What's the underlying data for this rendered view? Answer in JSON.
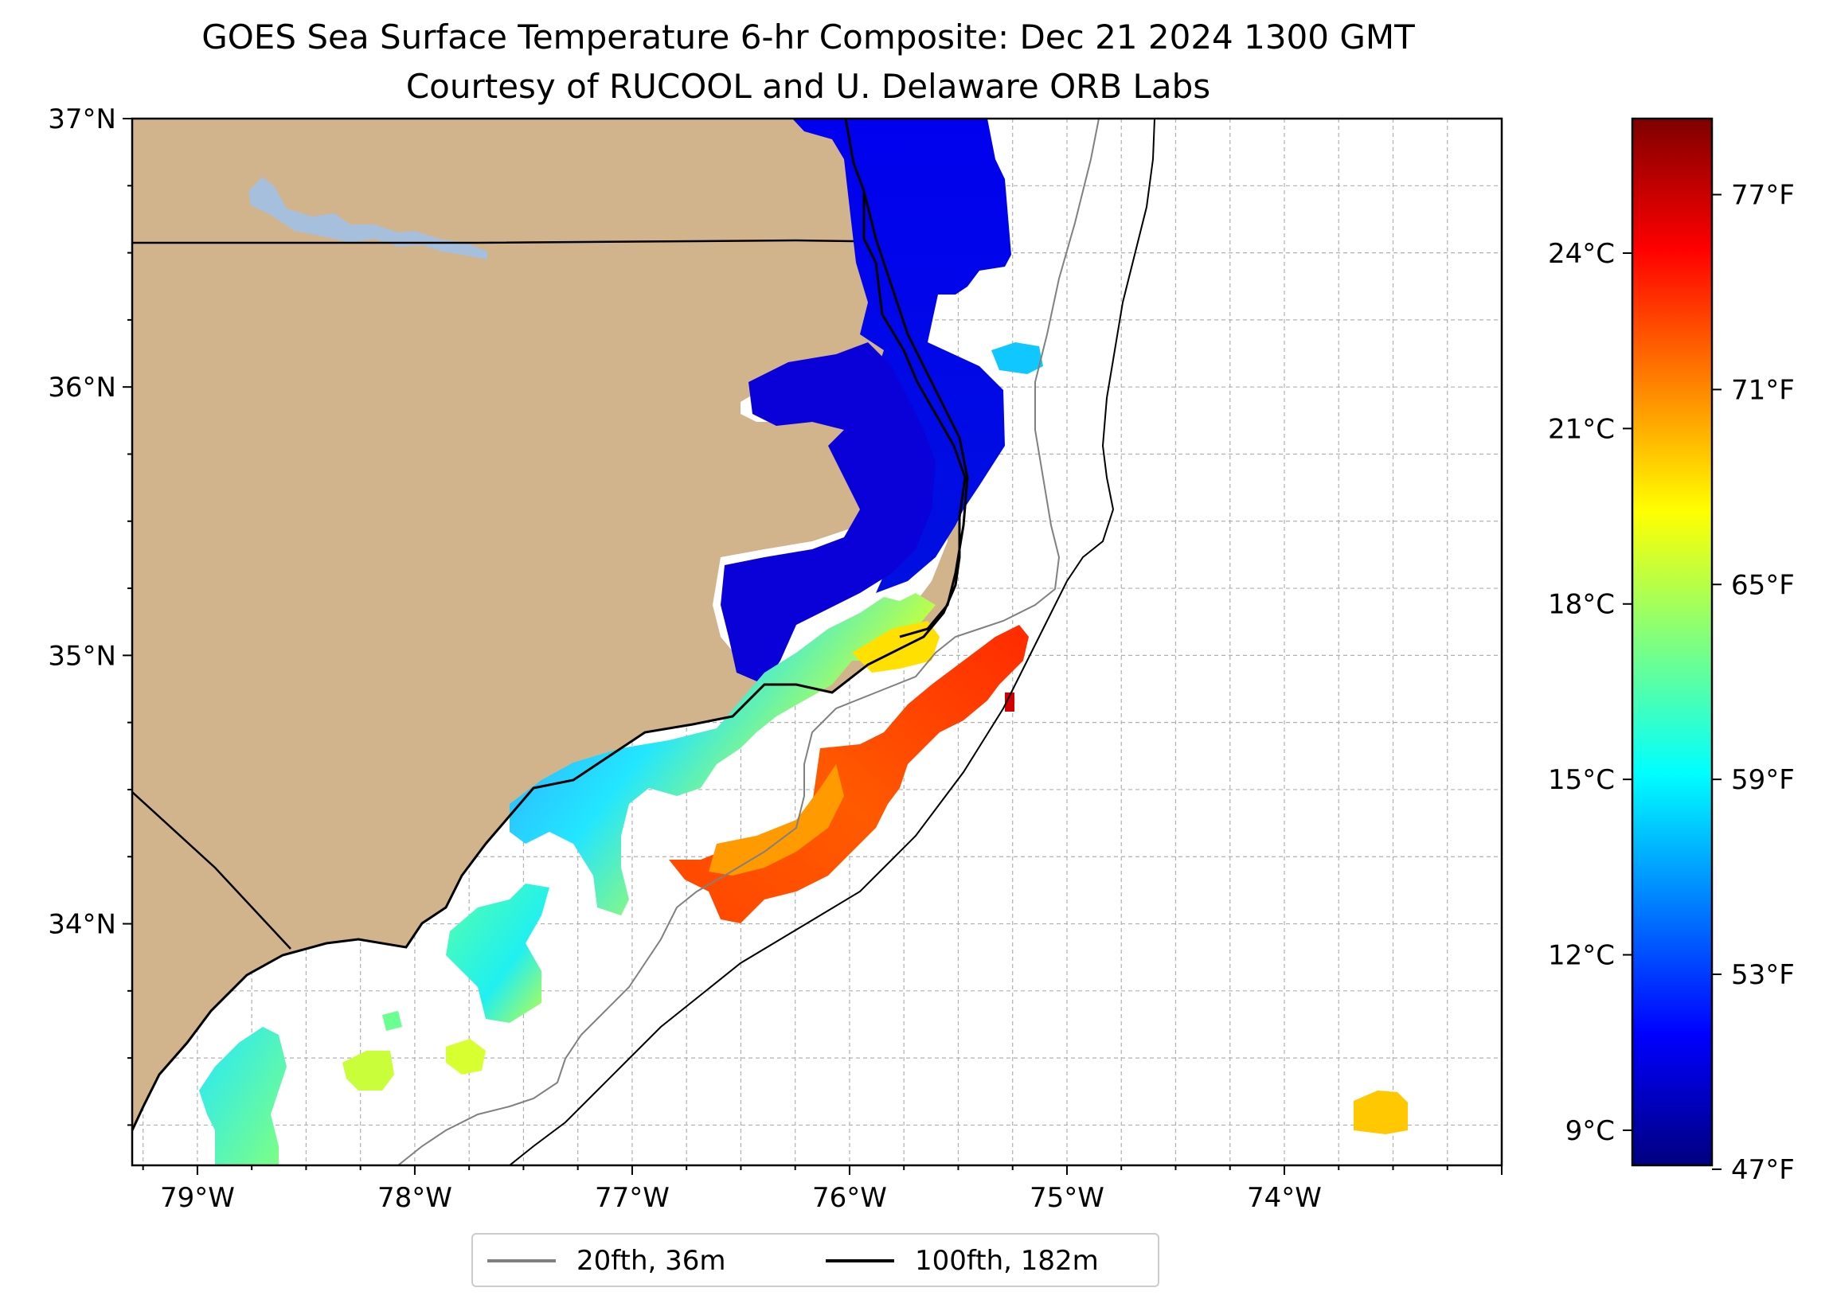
{
  "title": {
    "line1": "GOES Sea Surface Temperature 6-hr Composite: Dec 21 2024 1300 GMT",
    "line2": "Courtesy of RUCOOL and U. Delaware ORB Labs"
  },
  "map": {
    "lon_range": [
      -79.3,
      -73.0
    ],
    "lat_range": [
      33.1,
      37.0
    ],
    "x_ticks": [
      {
        "label": "79°W",
        "lon": -79
      },
      {
        "label": "78°W",
        "lon": -78
      },
      {
        "label": "77°W",
        "lon": -77
      },
      {
        "label": "76°W",
        "lon": -76
      },
      {
        "label": "75°W",
        "lon": -75
      },
      {
        "label": "74°W",
        "lon": -74
      }
    ],
    "y_ticks": [
      {
        "label": "37°N",
        "lat": 37
      },
      {
        "label": "36°N",
        "lat": 36
      },
      {
        "label": "35°N",
        "lat": 35
      },
      {
        "label": "34°N",
        "lat": 34
      }
    ],
    "grid_step_degrees": 0.25,
    "colors": {
      "land": "#d2b48c",
      "lake": "#a5bfdd",
      "coastline": "#000000",
      "isobath_20fth": "#808080",
      "isobath_100fth": "#000000",
      "grid": "#b0b0b0"
    }
  },
  "colorbar": {
    "range_c": [
      8.4,
      26.3
    ],
    "celsius_ticks": [
      {
        "label": "24°C",
        "value": 24
      },
      {
        "label": "21°C",
        "value": 21
      },
      {
        "label": "18°C",
        "value": 18
      },
      {
        "label": "15°C",
        "value": 15
      },
      {
        "label": "12°C",
        "value": 12
      },
      {
        "label": "9°C",
        "value": 9
      }
    ],
    "fahrenheit_ticks": [
      {
        "label": "77°F",
        "value": 77
      },
      {
        "label": "71°F",
        "value": 71
      },
      {
        "label": "65°F",
        "value": 65
      },
      {
        "label": "59°F",
        "value": 59
      },
      {
        "label": "53°F",
        "value": 53
      },
      {
        "label": "47°F",
        "value": 47
      }
    ],
    "colormap": "jet",
    "colormap_stops": [
      "#00007f",
      "#0000ff",
      "#007fff",
      "#00ffff",
      "#7fff7f",
      "#ffff00",
      "#ff7f00",
      "#ff0000",
      "#7f0000"
    ]
  },
  "legend": {
    "items": [
      {
        "label": "20fth, 36m",
        "color": "#808080"
      },
      {
        "label": "100fth, 182m",
        "color": "#000000"
      }
    ]
  }
}
